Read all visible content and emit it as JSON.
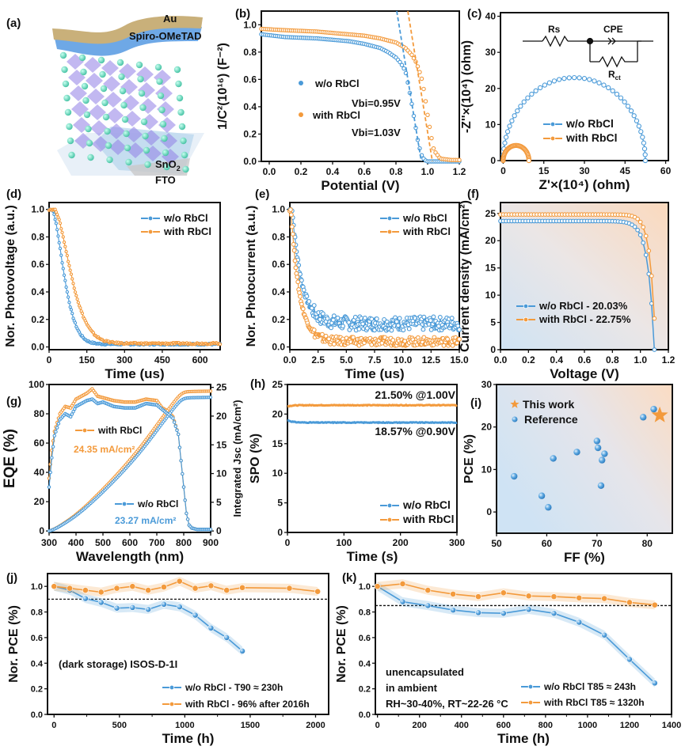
{
  "colors": {
    "blue": "#4a9ad8",
    "orange": "#f39a3c",
    "axis": "#111111"
  },
  "panel_a": {
    "label": "(a)",
    "layers": [
      "Au",
      "Spiro-OMeTAD",
      "SnO2",
      "FTO"
    ]
  },
  "chart_data": [
    {
      "id": "b",
      "label": "(b)",
      "type": "scatter",
      "xlabel": "Potential (V)",
      "ylabel": "1/C²(10¹⁶) (F⁻²)",
      "xlim": [
        -0.05,
        1.2
      ],
      "ylim": [
        0,
        1.1
      ],
      "xticks": [
        "0.0",
        "0.2",
        "0.4",
        "0.6",
        "0.8",
        "1.0",
        "1.2"
      ],
      "xtick_values": [
        0,
        0.2,
        0.4,
        0.6,
        0.8,
        1.0,
        1.2
      ],
      "yticks": [
        "0.0",
        "0.2",
        "0.4",
        "0.6",
        "0.8",
        "1.0"
      ],
      "ytick_values": [
        0,
        0.2,
        0.4,
        0.6,
        0.8,
        1.0
      ],
      "series": [
        {
          "name": "w/o RbCl",
          "annotation": "Vbi=0.95V",
          "color": "blue",
          "x": [
            -0.05,
            0.1,
            0.3,
            0.5,
            0.6,
            0.7,
            0.75,
            0.8,
            0.83,
            0.86,
            0.88,
            0.9,
            0.92,
            0.94,
            0.96,
            0.98,
            1.0,
            1.05
          ],
          "y": [
            0.93,
            0.91,
            0.9,
            0.88,
            0.86,
            0.83,
            0.8,
            0.76,
            0.72,
            0.66,
            0.55,
            0.42,
            0.28,
            0.14,
            0.05,
            0.01,
            0.0,
            0.0
          ],
          "fit": {
            "x": [
              0.805,
              0.96
            ],
            "y": [
              1.1,
              0.0
            ]
          }
        },
        {
          "name": "with RbCl",
          "annotation": "Vbi=1.03V",
          "color": "orange",
          "x": [
            -0.05,
            0.1,
            0.3,
            0.5,
            0.6,
            0.7,
            0.8,
            0.86,
            0.9,
            0.93,
            0.96,
            0.98,
            1.0,
            1.02,
            1.04,
            1.08,
            1.15,
            1.2
          ],
          "y": [
            0.97,
            0.96,
            0.95,
            0.93,
            0.92,
            0.9,
            0.87,
            0.83,
            0.78,
            0.72,
            0.62,
            0.5,
            0.34,
            0.2,
            0.08,
            0.02,
            0.01,
            0.01
          ],
          "fit": {
            "x": [
              0.875,
              1.03
            ],
            "y": [
              1.1,
              0.0
            ]
          }
        }
      ]
    },
    {
      "id": "c",
      "label": "(c)",
      "type": "line",
      "xlabel": "Z'×(10⁴) (ohm)",
      "ylabel": "-Z''×(10⁴) (ohm)",
      "xlim": [
        -1,
        61
      ],
      "ylim": [
        0,
        41
      ],
      "xticks": [
        "0",
        "15",
        "30",
        "45",
        "60"
      ],
      "xtick_values": [
        0,
        15,
        30,
        45,
        60
      ],
      "yticks": [
        "0",
        "10",
        "20",
        "30",
        "40"
      ],
      "ytick_values": [
        0,
        10,
        20,
        30,
        40
      ],
      "circuit": {
        "elements": [
          "Rs",
          "CPE",
          "Rct"
        ]
      },
      "series": [
        {
          "name": "w/o RbCl",
          "color": "blue",
          "semicircle": {
            "x0": 0,
            "x1": 52.5,
            "peak": 23
          }
        },
        {
          "name": "with RbCl",
          "color": "orange",
          "semicircle": {
            "x0": 0,
            "x1": 9.5,
            "peak": 4.2
          }
        }
      ]
    },
    {
      "id": "d",
      "label": "(d)",
      "type": "line",
      "xlabel": "Time (us)",
      "ylabel": "Nor. Photovoltage (a.u.)",
      "xlim": [
        0,
        680
      ],
      "ylim": [
        -0.02,
        1.05
      ],
      "xticks": [
        "0",
        "150",
        "300",
        "450",
        "600"
      ],
      "xtick_values": [
        0,
        150,
        300,
        450,
        600
      ],
      "yticks": [
        "0.0",
        "0.2",
        "0.4",
        "0.6",
        "0.8",
        "1.0"
      ],
      "ytick_values": [
        0,
        0.2,
        0.4,
        0.6,
        0.8,
        1.0
      ],
      "series": [
        {
          "name": "w/o RbCl",
          "color": "blue",
          "decay": {
            "t0": 12,
            "tau": 62,
            "floor": 0.02
          }
        },
        {
          "name": "with RbCl",
          "color": "orange",
          "decay": {
            "t0": 22,
            "tau": 85,
            "floor": 0.025
          }
        }
      ]
    },
    {
      "id": "e",
      "label": "(e)",
      "type": "line",
      "xlabel": "Time (us)",
      "ylabel": "Nor. Photocurrent (a.u.)",
      "xlim": [
        0,
        15
      ],
      "ylim": [
        -0.02,
        1.05
      ],
      "xticks": [
        "0.0",
        "2.5",
        "5.0",
        "7.5",
        "10.0",
        "12.5",
        "15.0"
      ],
      "xtick_values": [
        0,
        2.5,
        5,
        7.5,
        10,
        12.5,
        15
      ],
      "yticks": [
        "0.0",
        "0.2",
        "0.4",
        "0.6",
        "0.8",
        "1.0"
      ],
      "ytick_values": [
        0,
        0.2,
        0.4,
        0.6,
        0.8,
        1.0
      ],
      "series": [
        {
          "name": "w/o RbCl",
          "color": "blue",
          "decay": {
            "t0": 0.2,
            "tau": 0.85,
            "floor": 0.17,
            "noise": 0.05
          }
        },
        {
          "name": "with RbCl",
          "color": "orange",
          "decay": {
            "t0": 0.1,
            "tau": 0.75,
            "floor": 0.04,
            "noise": 0.03
          }
        }
      ]
    },
    {
      "id": "f",
      "label": "(f)",
      "type": "line",
      "xlabel": "Voltage (V)",
      "ylabel": "Current density (mA/cm²)",
      "xlim": [
        0,
        1.2
      ],
      "ylim": [
        0,
        27
      ],
      "xticks": [
        "0.0",
        "0.2",
        "0.4",
        "0.6",
        "0.8",
        "1.0",
        "1.2"
      ],
      "xtick_values": [
        0,
        0.2,
        0.4,
        0.6,
        0.8,
        1.0,
        1.2
      ],
      "yticks": [
        "0",
        "5",
        "10",
        "15",
        "20",
        "25"
      ],
      "ytick_values": [
        0,
        5,
        10,
        15,
        20,
        25
      ],
      "series": [
        {
          "name": "w/o RbCl - 20.03%",
          "color": "blue",
          "jv": {
            "jsc": 23.6,
            "voc": 1.1,
            "n": 0.045
          }
        },
        {
          "name": "with RbCl - 22.75%",
          "color": "orange",
          "jv": {
            "jsc": 24.8,
            "voc": 1.11,
            "n": 0.038
          }
        }
      ]
    },
    {
      "id": "g",
      "label": "(g)",
      "type": "line",
      "xlabel": "Wavelength (nm)",
      "ylabel": "EQE (%)",
      "y2label": "Integrated Jsc (mA/cm²)",
      "xlim": [
        300,
        900
      ],
      "ylim": [
        -1,
        100
      ],
      "y2lim": [
        -0.25,
        25.5
      ],
      "xticks": [
        "300",
        "400",
        "500",
        "600",
        "700",
        "800",
        "900"
      ],
      "xtick_values": [
        300,
        400,
        500,
        600,
        700,
        800,
        900
      ],
      "yticks": [
        "0",
        "20",
        "40",
        "60",
        "80",
        "100"
      ],
      "ytick_values": [
        0,
        20,
        40,
        60,
        80,
        100
      ],
      "y2ticks": [
        "0",
        "5",
        "10",
        "15",
        "20",
        "25"
      ],
      "y2tick_values": [
        0,
        5,
        10,
        15,
        20,
        25
      ],
      "series": [
        {
          "name": "with RbCl",
          "annotation": "24.35 mA/cm²",
          "color": "orange",
          "eqe_x": [
            300,
            310,
            320,
            340,
            360,
            380,
            400,
            420,
            440,
            460,
            480,
            500,
            540,
            580,
            620,
            660,
            700,
            720,
            740,
            760,
            780,
            790,
            800,
            810,
            820,
            830,
            850,
            900
          ],
          "eqe_y": [
            36,
            55,
            68,
            80,
            85,
            84,
            90,
            92,
            94,
            97,
            92,
            91,
            89,
            88,
            88,
            90,
            89,
            84,
            82,
            78,
            66,
            48,
            30,
            12,
            4,
            2,
            1,
            1
          ],
          "jsc_final": 24.35
        },
        {
          "name": "w/o RbCl",
          "annotation": "23.27 mA/cm²",
          "color": "blue",
          "eqe_x": [
            300,
            310,
            320,
            340,
            360,
            380,
            400,
            420,
            440,
            460,
            480,
            500,
            540,
            580,
            620,
            660,
            700,
            720,
            740,
            760,
            780,
            790,
            800,
            810,
            820,
            830,
            850,
            900
          ],
          "eqe_y": [
            30,
            50,
            65,
            76,
            80,
            78,
            85,
            87,
            89,
            90,
            87,
            88,
            85,
            84,
            84,
            87,
            86,
            83,
            80,
            77,
            66,
            48,
            30,
            12,
            4,
            2,
            1,
            1
          ],
          "jsc_final": 23.27
        }
      ]
    },
    {
      "id": "h",
      "label": "(h)",
      "type": "line",
      "xlabel": "Time (s)",
      "ylabel": "SPO (%)",
      "xlim": [
        0,
        300
      ],
      "ylim": [
        0,
        25
      ],
      "xticks": [
        "0",
        "100",
        "200",
        "300"
      ],
      "xtick_values": [
        0,
        100,
        200,
        300
      ],
      "yticks": [
        "0",
        "5",
        "10",
        "15",
        "20",
        "25"
      ],
      "ytick_values": [
        0,
        5,
        10,
        15,
        20,
        25
      ],
      "annotations": [
        "21.50% @1.00V",
        "18.57% @0.90V"
      ],
      "series": [
        {
          "name": "w/o RbCl",
          "color": "blue",
          "level": 18.57,
          "start": 19.0
        },
        {
          "name": "with RbCl",
          "color": "orange",
          "level": 21.5,
          "start": 21.3
        }
      ]
    },
    {
      "id": "i",
      "label": "(i)",
      "type": "scatter",
      "xlabel": "FF (%)",
      "ylabel": "PCE (%)",
      "xlim": [
        50,
        85
      ],
      "ylim": [
        -5,
        30
      ],
      "xticks": [
        "50",
        "60",
        "70",
        "80"
      ],
      "xtick_values": [
        50,
        60,
        70,
        80
      ],
      "yticks": [
        "0",
        "10",
        "20",
        "30"
      ],
      "ytick_values": [
        0,
        10,
        20,
        30
      ],
      "series": [
        {
          "name": "This work",
          "color": "orange",
          "marker": "star",
          "x": [
            82.5
          ],
          "y": [
            22.75
          ]
        },
        {
          "name": "Reference",
          "color": "blue",
          "marker": "sphere",
          "x": [
            53.5,
            59.0,
            60.3,
            61.3,
            66.0,
            70.0,
            70.2,
            70.8,
            71.0,
            71.5,
            79.2,
            81.3
          ],
          "y": [
            8.4,
            3.8,
            1.1,
            12.6,
            14.1,
            16.7,
            15.1,
            6.2,
            12.2,
            13.7,
            22.3,
            24.2
          ]
        }
      ]
    },
    {
      "id": "j",
      "label": "(j)",
      "type": "line",
      "xlabel": "Time (h)",
      "ylabel": "Nor. PCE (%)",
      "xlim": [
        -50,
        2100
      ],
      "ylim": [
        0,
        1.1
      ],
      "xticks": [
        "0",
        "500",
        "1000",
        "1500",
        "2000"
      ],
      "xtick_values": [
        0,
        500,
        1000,
        1500,
        2000
      ],
      "yticks": [
        "0.0",
        "0.2",
        "0.4",
        "0.6",
        "0.8",
        "1.0"
      ],
      "ytick_values": [
        0,
        0.2,
        0.4,
        0.6,
        0.8,
        1.0
      ],
      "reference_line": 0.9,
      "annotation": "(dark storage) ISOS-D-1I",
      "series": [
        {
          "name": "w/o RbCl - T90 ≈ 230h",
          "color": "blue",
          "x": [
            0,
            120,
            240,
            360,
            480,
            600,
            720,
            840,
            960,
            1080,
            1200,
            1320,
            1440
          ],
          "y": [
            1.0,
            0.97,
            0.905,
            0.875,
            0.83,
            0.835,
            0.82,
            0.86,
            0.84,
            0.775,
            0.675,
            0.6,
            0.495
          ]
        },
        {
          "name": "with RbCl - 96% after 2016h",
          "color": "orange",
          "x": [
            0,
            120,
            240,
            360,
            480,
            600,
            720,
            840,
            960,
            1080,
            1200,
            1320,
            1440,
            1800,
            2016
          ],
          "y": [
            1.0,
            0.985,
            0.97,
            0.955,
            0.985,
            1.0,
            0.97,
            0.995,
            1.04,
            0.985,
            1.005,
            0.97,
            0.99,
            0.985,
            0.96
          ]
        }
      ]
    },
    {
      "id": "k",
      "label": "(k)",
      "type": "line",
      "xlabel": "Time (h)",
      "ylabel": "Nor. PCE (%)",
      "xlim": [
        -10,
        1400
      ],
      "ylim": [
        0,
        1.1
      ],
      "xticks": [
        "0",
        "200",
        "400",
        "600",
        "800",
        "1000",
        "1200",
        "1400"
      ],
      "xtick_values": [
        0,
        200,
        400,
        600,
        800,
        1000,
        1200,
        1400
      ],
      "yticks": [
        "0.0",
        "0.2",
        "0.4",
        "0.6",
        "0.8",
        "1.0"
      ],
      "ytick_values": [
        0,
        0.2,
        0.4,
        0.6,
        0.8,
        1.0
      ],
      "reference_line": 0.85,
      "annotation": [
        "unencapsulated",
        "in ambient",
        "RH~30-40%, RT~22-26 °C"
      ],
      "series": [
        {
          "name": "w/o RbCl T85 ≈ 243h",
          "color": "blue",
          "x": [
            0,
            120,
            240,
            360,
            480,
            600,
            720,
            840,
            960,
            1080,
            1200,
            1320
          ],
          "y": [
            1.0,
            0.88,
            0.85,
            0.815,
            0.795,
            0.79,
            0.82,
            0.79,
            0.72,
            0.62,
            0.43,
            0.245
          ]
        },
        {
          "name": "with RbCl T85 ≈ 1320h",
          "color": "orange",
          "x": [
            0,
            120,
            240,
            360,
            480,
            600,
            720,
            840,
            960,
            1080,
            1200,
            1320
          ],
          "y": [
            1.0,
            1.02,
            0.97,
            0.94,
            0.92,
            0.95,
            0.925,
            0.92,
            0.91,
            0.905,
            0.875,
            0.855
          ]
        }
      ]
    }
  ]
}
